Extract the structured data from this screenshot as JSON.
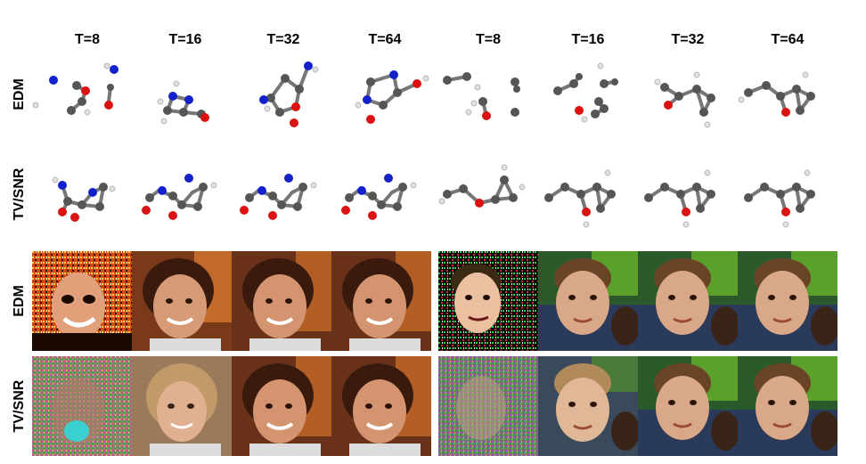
{
  "column_headers": [
    "T=8",
    "T=16",
    "T=32",
    "T=64",
    "T=8",
    "T=16",
    "T=32",
    "T=64"
  ],
  "row_labels": [
    "EDM",
    "TV/SNR",
    "EDM",
    "TV/SNR"
  ],
  "colors": {
    "carbon": "#555555",
    "oxygen": "#dd1111",
    "nitrogen": "#1122cc",
    "hydrogen": "#e8e8e8"
  }
}
